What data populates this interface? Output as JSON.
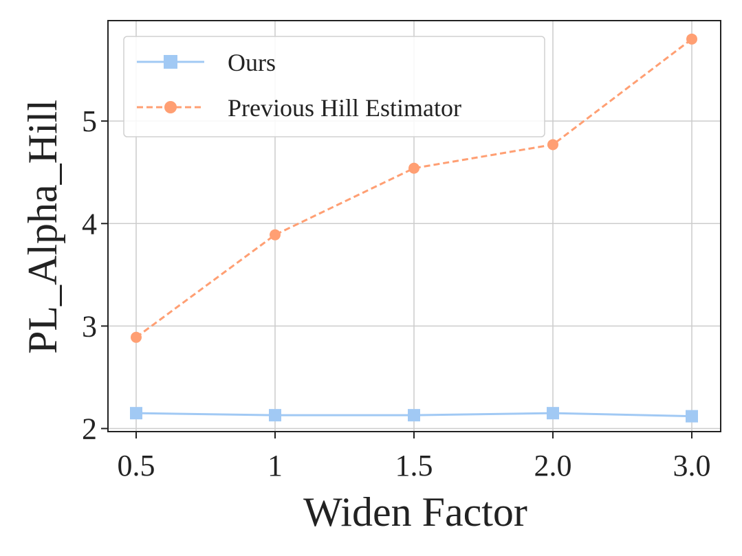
{
  "chart_data": {
    "type": "line",
    "categories": [
      "0.5",
      "1",
      "1.5",
      "2.0",
      "3.0"
    ],
    "series": [
      {
        "name": "Ours",
        "values": [
          2.15,
          2.13,
          2.13,
          2.15,
          2.12
        ],
        "color": "#a1c9f4",
        "marker": "square",
        "linestyle": "solid"
      },
      {
        "name": "Previous Hill Estimator",
        "values": [
          2.89,
          3.89,
          4.54,
          4.77,
          5.8
        ],
        "color": "#ff9f73",
        "marker": "circle",
        "linestyle": "dashed"
      }
    ],
    "xlabel": "Widen Factor",
    "ylabel": "PL_Alpha_Hill",
    "ylim": [
      1.97,
      5.98
    ],
    "yticks": [
      "2",
      "3",
      "4",
      "5"
    ],
    "grid": true,
    "legend_position": "top-left"
  }
}
